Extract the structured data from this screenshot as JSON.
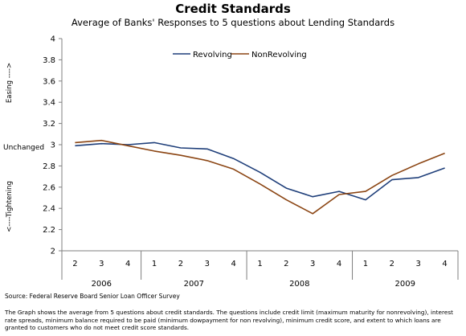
{
  "chart_data": {
    "type": "line",
    "title": "Credit Standards",
    "subtitle": "Average of Banks' Responses to 5 questions about Lending Standards",
    "ylim": [
      2,
      4
    ],
    "y_ticks": [
      "2",
      "2.2",
      "2.4",
      "2.6",
      "2.8",
      "3",
      "3.2",
      "3.4",
      "3.6",
      "3.8",
      "4"
    ],
    "categories": [
      "2",
      "3",
      "4",
      "1",
      "2",
      "3",
      "4",
      "1",
      "2",
      "3",
      "4",
      "1",
      "2",
      "3",
      "4"
    ],
    "year_groups": [
      {
        "label": "2006",
        "count": 3
      },
      {
        "label": "2007",
        "count": 4
      },
      {
        "label": "2008",
        "count": 4
      },
      {
        "label": "2009",
        "count": 4
      }
    ],
    "series": [
      {
        "name": "Revolving",
        "color": "#1F3F7A",
        "values": [
          2.99,
          3.01,
          3.0,
          3.02,
          2.97,
          2.96,
          2.87,
          2.74,
          2.59,
          2.51,
          2.56,
          2.48,
          2.67,
          2.69,
          2.78
        ]
      },
      {
        "name": "NonRevolving",
        "color": "#8B4513",
        "values": [
          3.02,
          3.04,
          2.99,
          2.94,
          2.9,
          2.85,
          2.77,
          2.63,
          2.48,
          2.35,
          2.53,
          2.56,
          2.71,
          2.82,
          2.92
        ]
      }
    ],
    "legend_position": "top-center",
    "grid": false,
    "y_side_labels": {
      "easing": "Easing ---->",
      "unchanged": "Unchanged",
      "tightening": "<----Tightening"
    }
  },
  "source": "Source: Federal Reserve Board Senior Loan Officer  Survey",
  "note": "The Graph shows the average from  5 questions about credit standards. The questions include credit limit  (maximum  maturity for nonrevolving), interest rate spreads, minimum balance required to be paid (minimum  dowpayment for non revolving), minimum  credit score, and extent to which loans are granted to customers who do not meet credit score standards."
}
